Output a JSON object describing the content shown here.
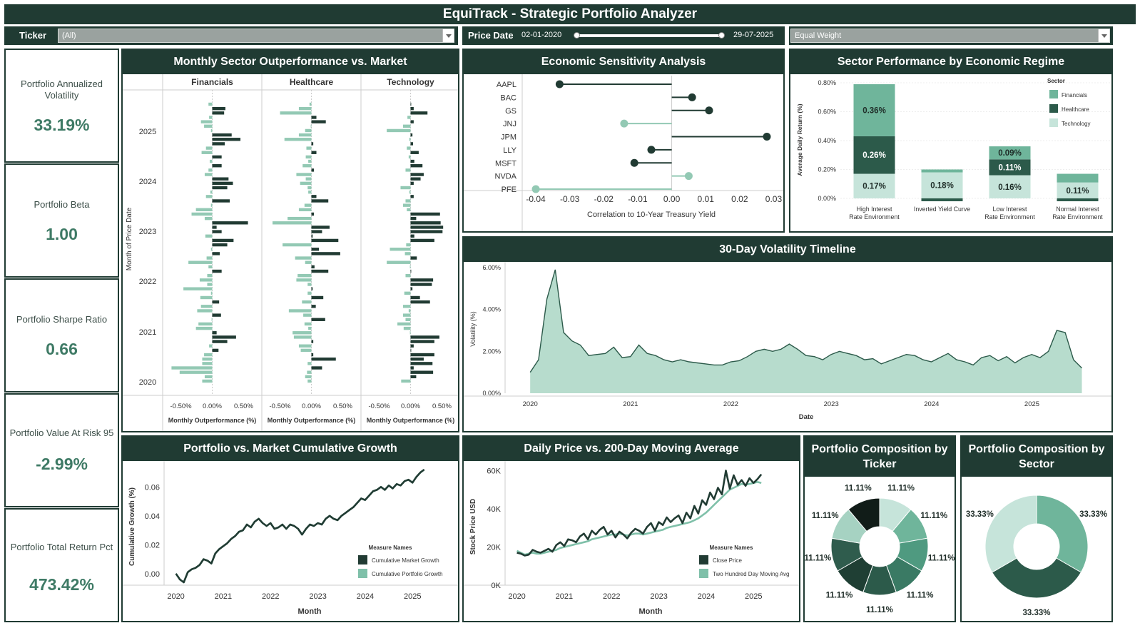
{
  "title": "EquiTrack - Strategic Portfolio Analyzer",
  "filters": {
    "ticker_label": "Ticker",
    "ticker_value": "(All)",
    "price_date_label": "Price Date",
    "date_start": "02-01-2020",
    "date_end": "29-07-2025",
    "date_range_fraction": [
      0,
      1
    ],
    "weight_value": "Equal Weight"
  },
  "colors": {
    "dark": "#203b33",
    "financials": "#6fb59b",
    "healthcare": "#2c5a4a",
    "technology": "#c6e4da",
    "bar_dark": "#213b33",
    "bar_light": "#93c9b4",
    "accent_text": "#3e7a65"
  },
  "kpis": [
    {
      "label": "Portfolio Annualized Volatility",
      "value": "33.19%"
    },
    {
      "label": "Portfolio Beta",
      "value": "1.00"
    },
    {
      "label": "Portfolio Sharpe Ratio",
      "value": "0.66"
    },
    {
      "label": "Portfolio Value At Risk 95",
      "value": "-2.99%"
    },
    {
      "label": "Portfolio Total Return Pct",
      "value": "473.42%"
    }
  ],
  "panels": {
    "monthly": "Monthly Sector Outperformance vs. Market",
    "sensitivity": "Economic Sensitivity Analysis",
    "regime": "Sector Performance by Economic Regime",
    "volatility": "30-Day Volatility Timeline",
    "growth": "Portfolio vs. Market Cumulative Growth",
    "price": "Daily Price vs. 200-Day Moving Average",
    "comp_ticker": "Portfolio Composition by Ticker",
    "comp_sector": "Portfolio Composition by Sector"
  },
  "chart_data": [
    {
      "id": "monthly",
      "type": "bar",
      "orientation": "horizontal",
      "title": "Monthly Sector Outperformance vs. Market",
      "ylabel": "Month of Price Date",
      "xlabel": "Monthly Outperformance (%)",
      "x_ticks": [
        "-0.50%",
        "0.00%",
        "0.50%"
      ],
      "xlim": [
        -0.7,
        0.7
      ],
      "y_ticks": [
        "2025",
        "2024",
        "2023",
        "2022",
        "2021",
        "2020"
      ],
      "panels": [
        {
          "name": "Financials",
          "values": [
            -0.06,
            0.21,
            0.19,
            -0.05,
            -0.18,
            -0.13,
            -0.02,
            0.31,
            0.45,
            0.2,
            -0.1,
            -0.17,
            0.15,
            -0.04,
            0.15,
            -0.06,
            -0.12,
            0.26,
            0.33,
            0.24,
            -0.03,
            -0.1,
            0.28,
            -0.02,
            -0.26,
            -0.33,
            -0.12,
            0.57,
            0.07,
            0.15,
            -0.11,
            0.34,
            0.24,
            -0.02,
            0.12,
            -0.09,
            -0.38,
            -0.06,
            0.15,
            -0.08,
            -0.2,
            -0.08,
            -0.46,
            -0.02,
            -0.19,
            0.11,
            -0.18,
            -0.24,
            0.14,
            -0.01,
            -0.22,
            -0.26,
            0.07,
            0.38,
            0.24,
            -0.05,
            0.1,
            -0.13,
            -0.16,
            -0.16,
            -0.65,
            -0.52,
            -0.12,
            -0.16
          ]
        },
        {
          "name": "Healthcare",
          "values": [
            -0.03,
            -0.2,
            -0.5,
            0.08,
            0.23,
            -0.01,
            -0.1,
            -0.2,
            -0.43,
            0.03,
            -0.08,
            0.08,
            -0.09,
            -0.05,
            -0.14,
            0.04,
            -0.24,
            -0.09,
            -0.18,
            -0.06,
            -0.05,
            0.08,
            0.27,
            -0.11,
            -0.2,
            0.04,
            -0.38,
            -0.62,
            0.29,
            0.17,
            0.02,
            0.43,
            -0.46,
            0.12,
            0.46,
            -0.26,
            -0.1,
            0.05,
            0.27,
            -0.22,
            -0.24,
            -0.06,
            0.02,
            -0.06,
            0.19,
            -0.15,
            0.07,
            -0.36,
            -0.13,
            0.22,
            -0.11,
            -0.05,
            -0.3,
            -0.28,
            0.03,
            -0.2,
            -0.17,
            0.03,
            0.39,
            -0.06,
            0.17,
            -0.07,
            -0.1,
            -0.06
          ]
        },
        {
          "name": "Technology",
          "values": [
            0.01,
            0.05,
            0.27,
            -0.05,
            0.05,
            -0.12,
            -0.38,
            0.03,
            -0.02,
            0.04,
            -0.06,
            0.13,
            -0.03,
            0.06,
            0.19,
            -0.08,
            0.21,
            0.16,
            0.05,
            -0.16,
            -0.02,
            0.05,
            -0.08,
            -0.12,
            -0.06,
            0.47,
            0.09,
            0.48,
            0.52,
            0.51,
            0.06,
            0.38,
            -0.07,
            -0.33,
            -0.09,
            0.1,
            -0.38,
            -0.01,
            0.01,
            -0.08,
            0.36,
            0.34,
            0.03,
            -0.1,
            0.15,
            0.31,
            -0.12,
            -0.03,
            -0.12,
            -0.08,
            -0.21,
            -0.11,
            -0.01,
            0.46,
            0.38,
            0.05,
            0.01,
            0.38,
            0.21,
            0.35,
            0.05,
            0.36,
            0.09,
            -0.15
          ]
        }
      ]
    },
    {
      "id": "sensitivity",
      "type": "scatter",
      "style": "lollipop",
      "title": "Economic Sensitivity Analysis",
      "xlabel": "Correlation to 10-Year Treasury Yield",
      "xlim": [
        -0.044,
        0.032
      ],
      "x_ticks": [
        "-0.04",
        "-0.03",
        "-0.02",
        "-0.01",
        "0.00",
        "0.01",
        "0.02",
        "0.03"
      ],
      "x_tick_values": [
        -0.04,
        -0.03,
        -0.02,
        -0.01,
        0,
        0.01,
        0.02,
        0.03
      ],
      "categories": [
        "AAPL",
        "BAC",
        "GS",
        "JNJ",
        "JPM",
        "LLY",
        "MSFT",
        "NVDA",
        "PFE"
      ],
      "values": [
        -0.033,
        0.006,
        0.011,
        -0.014,
        0.028,
        -0.006,
        -0.011,
        0.005,
        -0.04
      ],
      "highlight": [
        "dark",
        "dark",
        "dark",
        "light",
        "dark",
        "dark",
        "dark",
        "light",
        "light"
      ]
    },
    {
      "id": "regime",
      "type": "bar",
      "stacked": true,
      "title": "Sector Performance by Economic Regime",
      "ylabel": "Average Daily Return (%)",
      "ylim": [
        -0.02,
        0.8
      ],
      "y_ticks": [
        "0.00%",
        "0.20%",
        "0.40%",
        "0.60%",
        "0.80%"
      ],
      "y_tick_values": [
        0,
        0.2,
        0.4,
        0.6,
        0.8
      ],
      "categories": [
        "High Interest Rate Environment",
        "Inverted Yield Curve",
        "Low Interest Rate Environment",
        "Normal Interest Rate Environment"
      ],
      "legend_title": "Sector",
      "legend_position": "top-right",
      "series": [
        {
          "name": "Technology",
          "values": [
            0.17,
            0.18,
            0.16,
            0.11
          ],
          "labels": [
            "0.17%",
            "0.18%",
            "0.16%",
            "0.11%"
          ]
        },
        {
          "name": "Healthcare",
          "values": [
            0.26,
            -0.02,
            0.11,
            -0.02
          ],
          "labels": [
            "0.26%",
            "",
            "0.11%",
            ""
          ]
        },
        {
          "name": "Financials",
          "values": [
            0.36,
            0.02,
            0.09,
            0.06
          ],
          "labels": [
            "0.36%",
            "",
            "0.09%",
            ""
          ]
        }
      ]
    },
    {
      "id": "volatility",
      "type": "area",
      "title": "30-Day Volatility Timeline",
      "xlabel": "Date",
      "ylabel": "Volatility (%)",
      "ylim": [
        0,
        6
      ],
      "y_ticks": [
        "0.00%",
        "2.00%",
        "4.00%",
        "6.00%"
      ],
      "y_tick_values": [
        0,
        2,
        4,
        6
      ],
      "x_ticks": [
        "2020",
        "2021",
        "2022",
        "2023",
        "2024",
        "2025"
      ],
      "x_start": 2020.0,
      "x_step": 0.0833,
      "values": [
        1.0,
        1.6,
        4.5,
        5.9,
        2.9,
        2.5,
        2.3,
        1.8,
        1.85,
        1.9,
        2.2,
        1.7,
        1.75,
        2.3,
        1.9,
        1.8,
        1.6,
        1.5,
        1.6,
        1.5,
        1.45,
        1.4,
        1.35,
        1.35,
        1.5,
        1.55,
        1.75,
        2.0,
        2.1,
        2.0,
        2.1,
        2.35,
        2.1,
        1.8,
        1.75,
        1.6,
        1.85,
        2.0,
        1.9,
        1.8,
        1.6,
        1.65,
        1.4,
        1.55,
        1.7,
        1.85,
        1.8,
        1.6,
        1.5,
        1.7,
        1.9,
        1.6,
        1.5,
        1.35,
        1.7,
        1.8,
        1.55,
        1.75,
        1.45,
        1.7,
        1.85,
        1.7,
        2.0,
        3.0,
        2.9,
        1.6,
        1.2
      ]
    },
    {
      "id": "growth",
      "type": "line",
      "title": "Portfolio vs. Market Cumulative Growth",
      "xlabel": "Month",
      "ylabel": "Cumulative Growth (%)",
      "ylim": [
        -0.008,
        0.074
      ],
      "y_ticks": [
        "0.00",
        "0.02",
        "0.04",
        "0.06"
      ],
      "y_tick_values": [
        0,
        0.02,
        0.04,
        0.06
      ],
      "x_ticks": [
        "2020",
        "2021",
        "2022",
        "2023",
        "2024",
        "2025"
      ],
      "x_start": 2020.0,
      "x_step": 0.0833,
      "legend_title": "Measure Names",
      "legend_position": "bottom-right",
      "series": [
        {
          "name": "Cumulative Market Growth",
          "values": [
            0.0,
            -0.004,
            -0.006,
            0.001,
            0.003,
            0.004,
            0.006,
            0.01,
            0.009,
            0.007,
            0.014,
            0.017,
            0.019,
            0.021,
            0.024,
            0.026,
            0.029,
            0.03,
            0.034,
            0.032,
            0.036,
            0.038,
            0.035,
            0.033,
            0.035,
            0.031,
            0.032,
            0.034,
            0.031,
            0.034,
            0.033,
            0.031,
            0.027,
            0.031,
            0.034,
            0.033,
            0.035,
            0.034,
            0.038,
            0.04,
            0.038,
            0.037,
            0.04,
            0.042,
            0.044,
            0.046,
            0.049,
            0.052,
            0.051,
            0.054,
            0.057,
            0.058,
            0.06,
            0.058,
            0.061,
            0.059,
            0.062,
            0.061,
            0.064,
            0.065,
            0.063,
            0.067,
            0.07,
            0.072
          ]
        },
        {
          "name": "Cumulative Portfolio Growth",
          "values": [
            0.0,
            -0.004,
            -0.006,
            0.001,
            0.003,
            0.004,
            0.006,
            0.01,
            0.009,
            0.007,
            0.014,
            0.017,
            0.019,
            0.021,
            0.024,
            0.026,
            0.029,
            0.03,
            0.034,
            0.032,
            0.036,
            0.038,
            0.035,
            0.033,
            0.035,
            0.031,
            0.032,
            0.034,
            0.031,
            0.034,
            0.033,
            0.031,
            0.027,
            0.031,
            0.034,
            0.033,
            0.035,
            0.034,
            0.038,
            0.04,
            0.038,
            0.037,
            0.04,
            0.042,
            0.044,
            0.046,
            0.049,
            0.052,
            0.051,
            0.054,
            0.057,
            0.058,
            0.06,
            0.058,
            0.061,
            0.059,
            0.062,
            0.061,
            0.064,
            0.065,
            0.063,
            0.067,
            0.07,
            0.072
          ]
        }
      ]
    },
    {
      "id": "price",
      "type": "line",
      "title": "Daily Price vs. 200-Day Moving Average",
      "xlabel": "Month",
      "ylabel": "Stock Price USD",
      "ylim": [
        0,
        62000
      ],
      "y_ticks": [
        "0K",
        "20K",
        "40K",
        "60K"
      ],
      "y_tick_values": [
        0,
        20000,
        40000,
        60000
      ],
      "x_ticks": [
        "2020",
        "2021",
        "2022",
        "2023",
        "2024",
        "2025"
      ],
      "x_start": 2020.0,
      "x_step": 0.0833,
      "legend_title": "Measure Names",
      "legend_position": "bottom-right",
      "series": [
        {
          "name": "Close Price",
          "values": [
            17000,
            16500,
            15500,
            16000,
            18500,
            17500,
            17000,
            18000,
            19000,
            17500,
            21000,
            22500,
            20500,
            24000,
            23500,
            22500,
            25500,
            27000,
            24000,
            28500,
            26500,
            29000,
            30500,
            26500,
            28500,
            25000,
            28000,
            26500,
            24500,
            27500,
            29500,
            28500,
            27000,
            30500,
            32500,
            28500,
            33000,
            31500,
            35500,
            33000,
            35000,
            36500,
            32500,
            38000,
            35000,
            41500,
            37500,
            44500,
            42000,
            48500,
            45000,
            51000,
            47500,
            60000,
            50500,
            57500,
            52500,
            55000,
            52000,
            56000,
            53500,
            55500,
            58000
          ]
        },
        {
          "name": "Two Hundred Day Moving Avg",
          "values": [
            18000,
            17000,
            16000,
            16500,
            17000,
            16500,
            16500,
            17000,
            17500,
            18000,
            18500,
            19500,
            20000,
            20500,
            21000,
            21500,
            22000,
            22500,
            23000,
            24000,
            24500,
            25000,
            25500,
            26000,
            26500,
            26500,
            27000,
            26500,
            26000,
            26500,
            27000,
            27000,
            26500,
            27000,
            27500,
            28000,
            28500,
            29000,
            30000,
            30500,
            31000,
            31500,
            32000,
            32500,
            33000,
            34000,
            35000,
            36500,
            38000,
            40000,
            42000,
            44000,
            46000,
            48000,
            50000,
            51000,
            52000,
            53000,
            52500,
            53000,
            53500,
            54000,
            53500
          ]
        }
      ]
    },
    {
      "id": "comp_ticker",
      "type": "pie",
      "style": "donut",
      "title": "Portfolio Composition by Ticker",
      "labels": [
        "11.11%",
        "11.11%",
        "11.11%",
        "11.11%",
        "11.11%",
        "11.11%",
        "11.11%",
        "11.11%",
        "11.11%"
      ],
      "values": [
        11.11,
        11.11,
        11.11,
        11.11,
        11.11,
        11.11,
        11.11,
        11.11,
        11.11
      ]
    },
    {
      "id": "comp_sector",
      "type": "pie",
      "style": "donut",
      "title": "Portfolio Composition by Sector",
      "labels": [
        "33.33%",
        "33.33%",
        "33.33%"
      ],
      "values": [
        33.33,
        33.33,
        33.33
      ]
    }
  ]
}
